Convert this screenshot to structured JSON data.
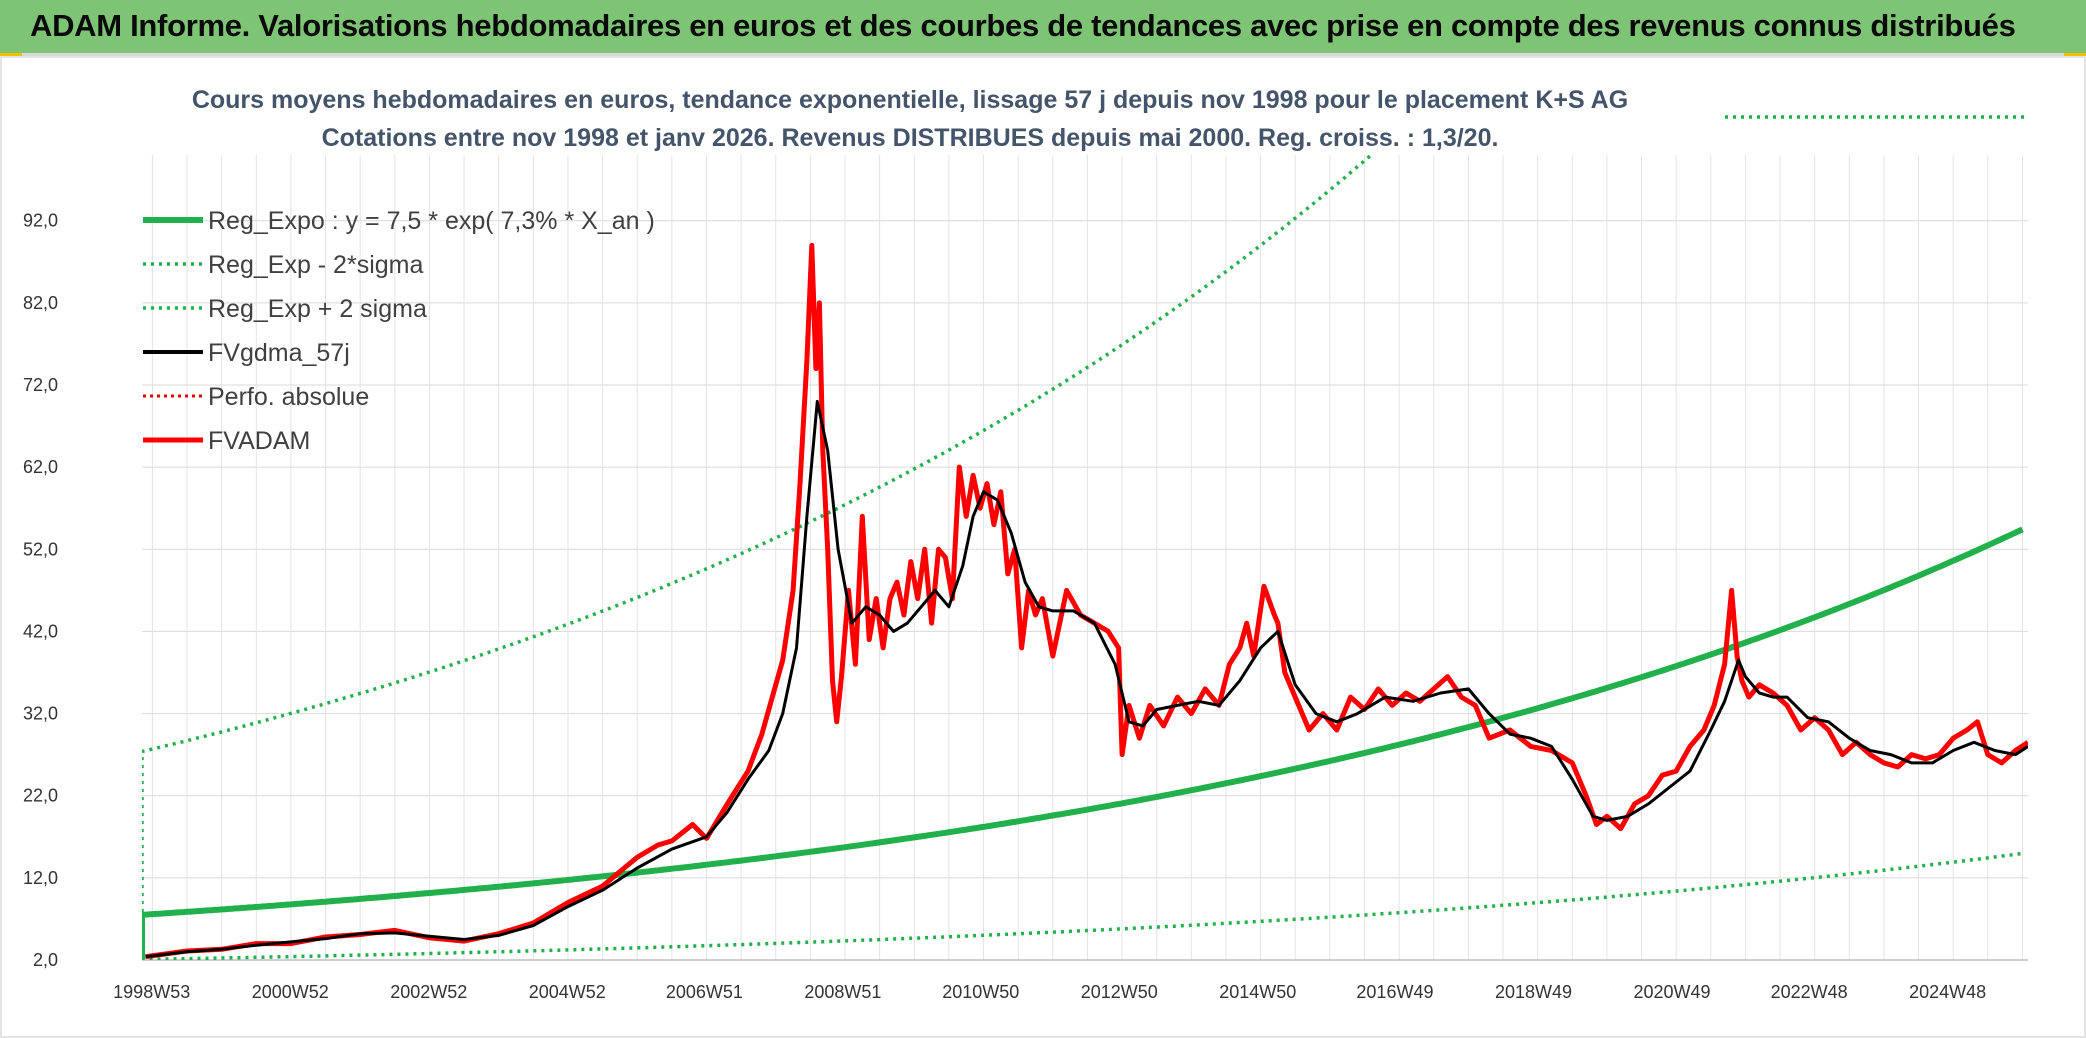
{
  "banner": {
    "title": "ADAM Informe. Valorisations hebdomadaires en euros et des courbes de tendances avec prise en compte des revenus connus distribués"
  },
  "colors": {
    "banner_bg": "#7dc474",
    "reg_expo": "#22b04c",
    "sigma_bands": "#22b04c",
    "fvgdma": "#000000",
    "perfo": "#e00000",
    "fvadam": "#ff0000",
    "title_text": "#44546a"
  },
  "chart_data": {
    "type": "line",
    "title_line1": "Cours moyens hebdomadaires en euros, tendance exponentielle, lissage 57 j depuis nov 1998 pour le placement K+S AG",
    "title_line2": "Cotations entre nov 1998 et janv 2026. Revenus DISTRIBUES depuis mai 2000. Reg. croiss. : 1,3/20.",
    "xlabel": "",
    "ylabel": "",
    "ylim": [
      2,
      100
    ],
    "yticks": [
      "2,0",
      "12,0",
      "22,0",
      "32,0",
      "42,0",
      "52,0",
      "62,0",
      "72,0",
      "82,0",
      "92,0"
    ],
    "xlim": [
      1998.85,
      2026.08
    ],
    "xticks": [
      {
        "label": "1998W53",
        "x": 1998.99
      },
      {
        "label": "2000W52",
        "x": 2000.99
      },
      {
        "label": "2002W52",
        "x": 2002.99
      },
      {
        "label": "2004W52",
        "x": 2004.99
      },
      {
        "label": "2006W51",
        "x": 2006.97
      },
      {
        "label": "2008W51",
        "x": 2008.97
      },
      {
        "label": "2010W50",
        "x": 2010.96
      },
      {
        "label": "2012W50",
        "x": 2012.96
      },
      {
        "label": "2014W50",
        "x": 2014.96
      },
      {
        "label": "2016W49",
        "x": 2016.94
      },
      {
        "label": "2018W49",
        "x": 2018.94
      },
      {
        "label": "2020W49",
        "x": 2020.94
      },
      {
        "label": "2022W48",
        "x": 2022.92
      },
      {
        "label": "2024W48",
        "x": 2024.92
      }
    ],
    "grid": true,
    "legend_position": "top-left",
    "regression": {
      "a": 7.5,
      "rate": 0.073,
      "x0": 1998.85,
      "x1": 2026.0,
      "upper_factor": 3.65,
      "lower_factor": 0.275
    },
    "series": [
      {
        "name": "Reg_Expo : y = 7,5 * exp( 7,3% *  X_an )",
        "kind": "reg",
        "style": "thick-solid"
      },
      {
        "name": "Reg_Exp - 2*sigma",
        "kind": "lower",
        "style": "dotted"
      },
      {
        "name": "Reg_Exp + 2 sigma",
        "kind": "upper",
        "style": "dotted"
      },
      {
        "name": "FVgdma_57j",
        "kind": "data",
        "style": "solid-black",
        "x": [
          1998.9,
          1999.5,
          2000.0,
          2000.5,
          2001.0,
          2001.5,
          2002.0,
          2002.5,
          2003.0,
          2003.5,
          2004.0,
          2004.5,
          2005.0,
          2005.5,
          2006.0,
          2006.5,
          2007.0,
          2007.3,
          2007.6,
          2007.9,
          2008.1,
          2008.3,
          2008.45,
          2008.6,
          2008.75,
          2008.9,
          2009.1,
          2009.3,
          2009.5,
          2009.7,
          2009.9,
          2010.1,
          2010.3,
          2010.5,
          2010.7,
          2010.85,
          2011.0,
          2011.2,
          2011.4,
          2011.6,
          2011.8,
          2012.0,
          2012.3,
          2012.6,
          2012.9,
          2013.1,
          2013.3,
          2013.5,
          2013.8,
          2014.1,
          2014.4,
          2014.7,
          2015.0,
          2015.25,
          2015.5,
          2015.8,
          2016.1,
          2016.4,
          2016.8,
          2017.2,
          2017.6,
          2018.0,
          2018.3,
          2018.6,
          2018.9,
          2019.2,
          2019.5,
          2019.8,
          2020.0,
          2020.3,
          2020.6,
          2020.9,
          2021.2,
          2021.5,
          2021.7,
          2021.9,
          2022.0,
          2022.2,
          2022.4,
          2022.6,
          2022.9,
          2023.2,
          2023.5,
          2023.8,
          2024.1,
          2024.4,
          2024.7,
          2025.0,
          2025.3,
          2025.6,
          2025.9,
          2026.08
        ],
        "y": [
          2.4,
          3.0,
          3.3,
          3.8,
          4.2,
          4.6,
          5.2,
          5.3,
          4.9,
          4.5,
          5.0,
          6.2,
          8.5,
          10.5,
          13.2,
          15.5,
          17.0,
          20.0,
          24.0,
          27.5,
          32.0,
          40.0,
          56.0,
          70.0,
          64.0,
          52.0,
          43.0,
          45.0,
          44.0,
          42.0,
          43.0,
          45.0,
          47.0,
          45.0,
          50.0,
          56.0,
          59.0,
          58.0,
          54.0,
          48.0,
          45.0,
          44.5,
          44.5,
          43.0,
          38.0,
          31.0,
          30.5,
          32.5,
          33.0,
          33.5,
          33.0,
          36.0,
          40.0,
          42.0,
          35.5,
          32.0,
          31.0,
          32.0,
          34.0,
          33.5,
          34.5,
          35.0,
          32.0,
          29.5,
          29.0,
          28.0,
          24.0,
          19.5,
          19.0,
          19.5,
          21.0,
          23.0,
          25.0,
          30.0,
          33.5,
          38.5,
          36.5,
          34.5,
          34.0,
          34.0,
          31.5,
          31.0,
          29.0,
          27.5,
          27.0,
          26.0,
          26.0,
          27.5,
          28.5,
          27.5,
          27.0,
          28.0
        ]
      },
      {
        "name": "Perfo. absolue",
        "kind": "legend-only",
        "style": "dotted-red"
      },
      {
        "name": "FVADAM",
        "kind": "data",
        "style": "thick-red",
        "x": [
          1998.9,
          1999.5,
          2000.0,
          2000.5,
          2001.0,
          2001.5,
          2002.0,
          2002.5,
          2003.0,
          2003.5,
          2004.0,
          2004.5,
          2005.0,
          2005.5,
          2006.0,
          2006.3,
          2006.5,
          2006.8,
          2007.0,
          2007.3,
          2007.6,
          2007.8,
          2007.95,
          2008.1,
          2008.25,
          2008.35,
          2008.45,
          2008.52,
          2008.58,
          2008.63,
          2008.68,
          2008.75,
          2008.82,
          2008.88,
          2008.95,
          2009.05,
          2009.15,
          2009.25,
          2009.35,
          2009.45,
          2009.55,
          2009.65,
          2009.75,
          2009.85,
          2009.95,
          2010.05,
          2010.15,
          2010.25,
          2010.35,
          2010.45,
          2010.55,
          2010.65,
          2010.75,
          2010.85,
          2010.95,
          2011.05,
          2011.15,
          2011.25,
          2011.35,
          2011.45,
          2011.55,
          2011.65,
          2011.75,
          2011.85,
          2012.0,
          2012.2,
          2012.4,
          2012.6,
          2012.8,
          2012.95,
          2013.0,
          2013.1,
          2013.25,
          2013.4,
          2013.6,
          2013.8,
          2014.0,
          2014.2,
          2014.4,
          2014.55,
          2014.7,
          2014.8,
          2014.9,
          2015.05,
          2015.2,
          2015.25,
          2015.35,
          2015.5,
          2015.7,
          2015.9,
          2016.1,
          2016.3,
          2016.5,
          2016.7,
          2016.9,
          2017.1,
          2017.3,
          2017.5,
          2017.7,
          2017.9,
          2018.1,
          2018.3,
          2018.6,
          2018.9,
          2019.2,
          2019.5,
          2019.7,
          2019.85,
          2020.0,
          2020.2,
          2020.4,
          2020.6,
          2020.8,
          2021.0,
          2021.2,
          2021.4,
          2021.55,
          2021.7,
          2021.8,
          2021.88,
          2021.95,
          2022.05,
          2022.2,
          2022.4,
          2022.6,
          2022.8,
          2023.0,
          2023.2,
          2023.4,
          2023.6,
          2023.8,
          2024.0,
          2024.2,
          2024.4,
          2024.6,
          2024.8,
          2025.0,
          2025.2,
          2025.35,
          2025.5,
          2025.7,
          2025.9,
          2026.08
        ],
        "y": [
          2.4,
          3.1,
          3.3,
          4.0,
          4.0,
          4.8,
          5.1,
          5.6,
          4.7,
          4.3,
          5.2,
          6.5,
          9.0,
          11.0,
          14.5,
          16.0,
          16.5,
          18.5,
          16.8,
          21.0,
          25.0,
          29.5,
          34.0,
          38.5,
          47.0,
          60.0,
          75.0,
          89.0,
          74.0,
          82.0,
          64.0,
          52.0,
          36.0,
          31.0,
          36.5,
          47.0,
          38.0,
          56.0,
          41.0,
          46.0,
          40.0,
          46.0,
          48.0,
          44.0,
          50.5,
          46.0,
          52.0,
          43.0,
          52.0,
          51.0,
          46.0,
          62.0,
          56.0,
          61.0,
          57.0,
          60.0,
          55.0,
          59.0,
          49.0,
          52.0,
          40.0,
          47.0,
          44.0,
          46.0,
          39.0,
          47.0,
          44.0,
          43.0,
          42.0,
          40.0,
          27.0,
          33.0,
          29.0,
          33.0,
          30.5,
          34.0,
          32.0,
          35.0,
          33.0,
          38.0,
          40.0,
          43.0,
          39.0,
          47.5,
          44.0,
          43.0,
          37.0,
          34.0,
          30.0,
          32.0,
          30.0,
          34.0,
          32.5,
          35.0,
          33.0,
          34.5,
          33.5,
          35.0,
          36.5,
          34.0,
          33.0,
          29.0,
          30.0,
          28.0,
          27.5,
          26.0,
          22.0,
          18.5,
          19.5,
          18.0,
          21.0,
          22.0,
          24.5,
          25.0,
          28.0,
          30.0,
          33.0,
          38.0,
          47.0,
          39.0,
          36.0,
          34.0,
          35.5,
          34.5,
          33.0,
          30.0,
          31.5,
          30.0,
          27.0,
          28.5,
          27.0,
          26.0,
          25.5,
          27.0,
          26.5,
          27.0,
          29.0,
          30.0,
          31.0,
          27.0,
          26.0,
          27.5,
          28.5
        ]
      }
    ]
  }
}
